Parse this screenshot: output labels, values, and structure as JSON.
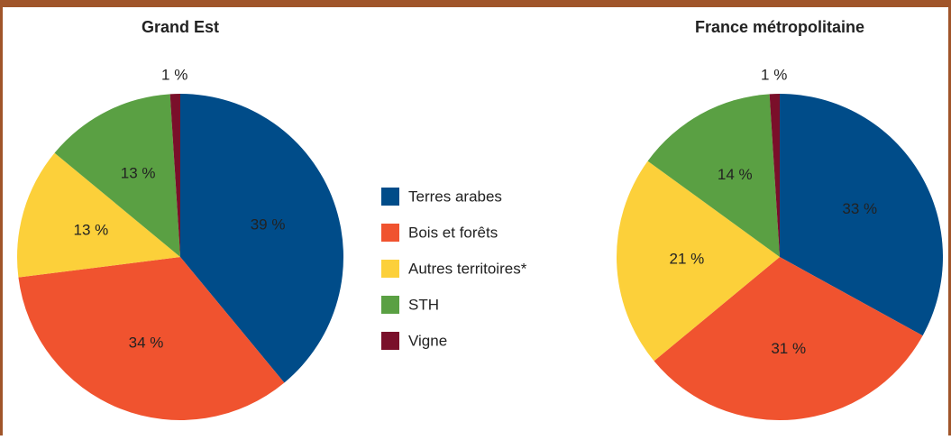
{
  "chart_data": [
    {
      "type": "pie",
      "title": "Grand Est",
      "categories": [
        "Terres arabes",
        "Bois et forêts",
        "Autres territoires*",
        "STH",
        "Vigne"
      ],
      "colors": [
        "#004c89",
        "#f0532f",
        "#fcd03a",
        "#5aa043",
        "#7a0f2a"
      ],
      "values": [
        39,
        34,
        13,
        13,
        1
      ],
      "value_labels": [
        "39 %",
        "34 %",
        "13 %",
        "13 %",
        "1 %"
      ]
    },
    {
      "type": "pie",
      "title": "France métropolitaine",
      "values": [
        33,
        31,
        21,
        14,
        1
      ],
      "value_labels": [
        "33 %",
        "31 %",
        "21 %",
        "14 %",
        "1 %"
      ]
    }
  ]
}
